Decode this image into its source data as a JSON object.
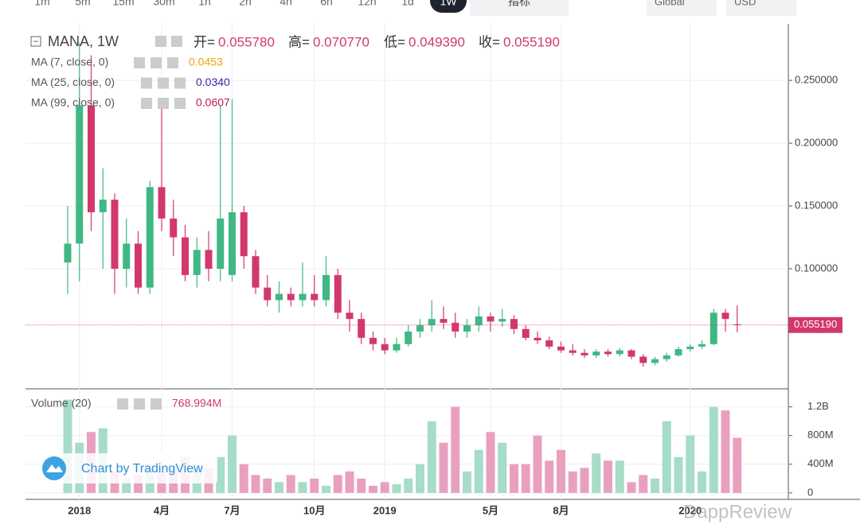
{
  "toolbar": {
    "intervals": [
      "1m",
      "5m",
      "15m",
      "30m",
      "1h",
      "2h",
      "4h",
      "6h",
      "12h",
      "1d",
      "1W"
    ],
    "selected": 10,
    "indicators": "指标",
    "market": "Global",
    "currency": "USD"
  },
  "chart_data": {
    "type": "candlestick",
    "legend": {
      "symbol": "MANA, 1W",
      "open_label": "开=",
      "open": "0.055780",
      "high_label": "高=",
      "high": "0.070770",
      "low_label": "低=",
      "low": "0.049390",
      "close_label": "收=",
      "close": "0.055190"
    },
    "indicators": [
      {
        "name": "MA (7, close, 0)",
        "value": "0.0453",
        "color": "#f0a30a"
      },
      {
        "name": "MA (25, close, 0)",
        "value": "0.0340",
        "color": "#3f1fa8"
      },
      {
        "name": "MA (99, close, 0)",
        "value": "0.0607",
        "color": "#c2185b"
      }
    ],
    "categories": [
      null,
      "2018",
      null,
      null,
      null,
      null,
      null,
      null,
      "4月",
      null,
      null,
      null,
      null,
      null,
      "7月",
      null,
      null,
      null,
      null,
      null,
      null,
      "10月",
      null,
      null,
      null,
      null,
      null,
      "2019",
      null,
      null,
      null,
      null,
      null,
      null,
      null,
      null,
      "5月",
      null,
      null,
      null,
      null,
      null,
      "8月",
      null,
      null,
      null,
      null,
      null,
      null,
      null,
      null,
      null,
      null,
      "2020",
      null,
      null,
      null,
      null
    ],
    "open": [
      0.105,
      0.12,
      0.23,
      0.145,
      0.155,
      0.1,
      0.12,
      0.085,
      0.165,
      0.14,
      0.125,
      0.095,
      0.115,
      0.1,
      0.095,
      0.145,
      0.11,
      0.085,
      0.075,
      0.08,
      0.075,
      0.08,
      0.075,
      0.095,
      0.065,
      0.06,
      0.045,
      0.04,
      0.035,
      0.04,
      0.05,
      0.055,
      0.06,
      0.057,
      0.05,
      0.055,
      0.062,
      0.058,
      0.06,
      0.052,
      0.045,
      0.043,
      0.038,
      0.035,
      0.033,
      0.031,
      0.034,
      0.032,
      0.035,
      0.03,
      0.025,
      0.028,
      0.031,
      0.036,
      0.038,
      0.04,
      0.065,
      0.05578
    ],
    "high": [
      0.15,
      0.28,
      0.27,
      0.18,
      0.16,
      0.14,
      0.13,
      0.17,
      0.23,
      0.155,
      0.135,
      0.125,
      0.13,
      0.23,
      0.235,
      0.15,
      0.115,
      0.095,
      0.09,
      0.085,
      0.105,
      0.095,
      0.11,
      0.1,
      0.075,
      0.065,
      0.05,
      0.045,
      0.045,
      0.055,
      0.06,
      0.075,
      0.07,
      0.065,
      0.06,
      0.07,
      0.065,
      0.068,
      0.063,
      0.055,
      0.05,
      0.046,
      0.042,
      0.04,
      0.036,
      0.036,
      0.036,
      0.037,
      0.036,
      0.032,
      0.03,
      0.033,
      0.038,
      0.04,
      0.043,
      0.068,
      0.068,
      0.07077
    ],
    "low": [
      0.08,
      0.09,
      0.13,
      0.1,
      0.08,
      0.085,
      0.08,
      0.08,
      0.13,
      0.11,
      0.09,
      0.085,
      0.09,
      0.09,
      0.09,
      0.1,
      0.08,
      0.07,
      0.065,
      0.07,
      0.07,
      0.07,
      0.07,
      0.06,
      0.05,
      0.04,
      0.035,
      0.032,
      0.033,
      0.038,
      0.045,
      0.05,
      0.052,
      0.045,
      0.045,
      0.05,
      0.05,
      0.054,
      0.048,
      0.043,
      0.04,
      0.036,
      0.033,
      0.031,
      0.029,
      0.029,
      0.03,
      0.03,
      0.028,
      0.022,
      0.023,
      0.026,
      0.03,
      0.034,
      0.036,
      0.039,
      0.05,
      0.04939
    ],
    "close": [
      0.12,
      0.23,
      0.145,
      0.155,
      0.1,
      0.12,
      0.085,
      0.165,
      0.14,
      0.125,
      0.095,
      0.115,
      0.1,
      0.14,
      0.145,
      0.11,
      0.085,
      0.075,
      0.08,
      0.075,
      0.08,
      0.075,
      0.095,
      0.065,
      0.06,
      0.045,
      0.04,
      0.035,
      0.04,
      0.05,
      0.055,
      0.06,
      0.057,
      0.05,
      0.055,
      0.062,
      0.058,
      0.06,
      0.052,
      0.045,
      0.043,
      0.038,
      0.035,
      0.033,
      0.031,
      0.034,
      0.032,
      0.035,
      0.03,
      0.025,
      0.028,
      0.031,
      0.036,
      0.038,
      0.04,
      0.065,
      0.06,
      0.05519
    ],
    "up_color": "#3fb883",
    "down_color": "#d2386c",
    "ylim": [
      0.005,
      0.295
    ],
    "yticks": [
      {
        "value": 0.1,
        "label": "0.100000"
      },
      {
        "value": 0.15,
        "label": "0.150000"
      },
      {
        "value": 0.2,
        "label": "0.200000"
      },
      {
        "value": 0.25,
        "label": "0.250000"
      }
    ],
    "grid": true,
    "volume": {
      "title": "Volume (20)",
      "current_label": "768.994M",
      "up_color": "#a6dcc8",
      "down_color": "#e9a0bf",
      "values": [
        1300000000,
        700000000,
        850000000,
        900000000,
        300000000,
        200000000,
        250000000,
        400000000,
        300000000,
        350000000,
        500000000,
        400000000,
        350000000,
        500000000,
        800000000,
        400000000,
        250000000,
        200000000,
        150000000,
        250000000,
        150000000,
        200000000,
        100000000,
        250000000,
        300000000,
        200000000,
        100000000,
        150000000,
        120000000,
        200000000,
        400000000,
        1000000000,
        700000000,
        1200000000,
        300000000,
        600000000,
        850000000,
        700000000,
        400000000,
        400000000,
        800000000,
        450000000,
        600000000,
        300000000,
        350000000,
        550000000,
        450000000,
        450000000,
        150000000,
        250000000,
        200000000,
        1000000000,
        500000000,
        800000000,
        300000000,
        1200000000,
        1150000000,
        768994000
      ],
      "ylim": [
        -90000000,
        1440000000
      ],
      "yticks": [
        0,
        {
          "value": 400000000,
          "label": "400M"
        },
        {
          "value": 800000000,
          "label": "800M"
        },
        {
          "value": 1200000000,
          "label": "1.2B"
        }
      ]
    }
  },
  "branding": {
    "credit": "Chart by TradingView",
    "watermark": "DappReview"
  }
}
